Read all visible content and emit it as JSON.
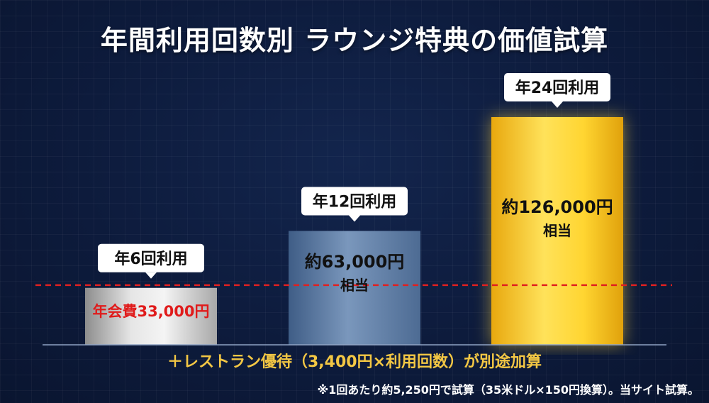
{
  "title": "年間利用回数別 ラウンジ特典の価値試算",
  "footer": {
    "main": "＋レストラン優待（3,400円×利用回数）が別途加算",
    "note": "※1回あたり約5,250円で試算（35米ドル×150円換算）。当サイト試算。"
  },
  "colors": {
    "background": "#0d1b3c",
    "silver": "#c8c8c8",
    "blue": "#5f7ea6",
    "gold": "#f2c21a",
    "reference_line": "#e02020",
    "fee_text": "#e01b1b"
  },
  "chart_data": {
    "type": "bar",
    "title": "年間利用回数別 ラウンジ特典の価値試算",
    "categories": [
      "年6回利用",
      "年12回利用",
      "年24回利用"
    ],
    "values": [
      31500,
      63000,
      126000
    ],
    "value_labels": [
      "",
      "約63,000円",
      "約126,000円"
    ],
    "value_sublabels": [
      "",
      "相当",
      "相当"
    ],
    "ylim": [
      0,
      135000
    ],
    "reference_line": {
      "value": 33000,
      "label": "年会費33,000円"
    },
    "grid": false,
    "legend": "none"
  }
}
